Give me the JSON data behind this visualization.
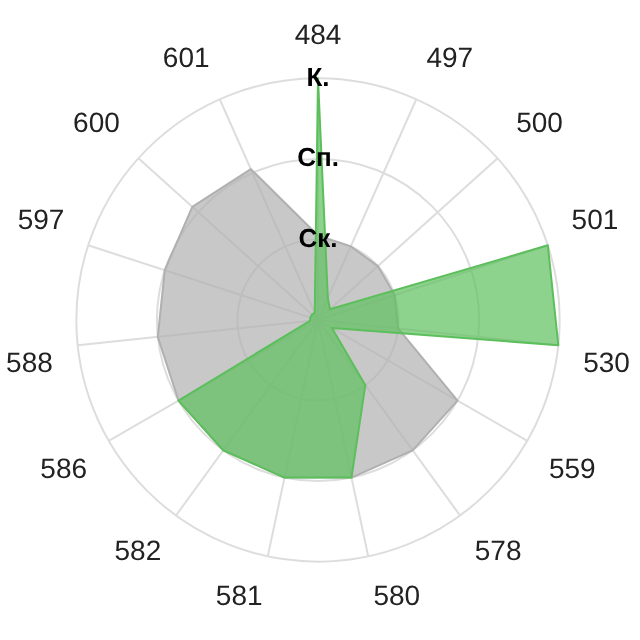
{
  "chart_data": {
    "type": "radar",
    "categories": [
      "484",
      "497",
      "500",
      "501",
      "530",
      "559",
      "578",
      "580",
      "581",
      "582",
      "586",
      "588",
      "597",
      "600",
      "601"
    ],
    "ylim": [
      0,
      3
    ],
    "yticks": [
      {
        "value": 1,
        "label": "Ск."
      },
      {
        "value": 2,
        "label": "Сп."
      },
      {
        "value": 3,
        "label": "К."
      }
    ],
    "series": [
      {
        "color": "#b0b0b0",
        "values": [
          1.05,
          1.0,
          1.0,
          1.0,
          1.0,
          2.0,
          2.0,
          2.0,
          2.0,
          2.0,
          2.0,
          2.0,
          2.0,
          2.1,
          2.05
        ]
      },
      {
        "color": "#5cbf5c",
        "values": [
          3.0,
          0.3,
          0.2,
          3.0,
          3.0,
          0.2,
          1.0,
          2.0,
          2.0,
          2.0,
          2.0,
          0.1,
          0.1,
          0.1,
          0.1
        ]
      }
    ],
    "grid": true,
    "legend": false,
    "marker": "none"
  }
}
